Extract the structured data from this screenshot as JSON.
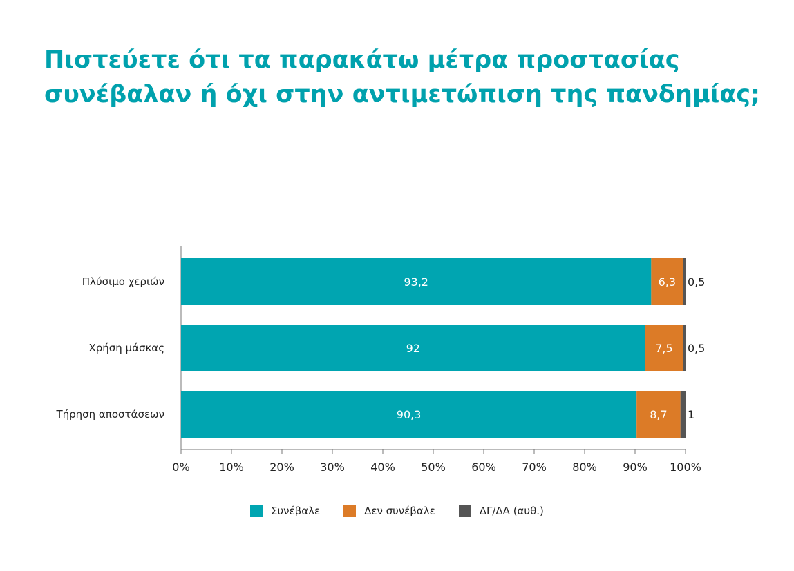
{
  "title_line1": "Πιστεύετε ότι τα παρακάτω μέτρα προστασίας",
  "title_line2": "συνέβαλαν ή όχι στην αντιμετώπιση της πανδημίας;",
  "chart_data": {
    "type": "bar",
    "orientation": "horizontal",
    "stacked": true,
    "categories": [
      "Πλύσιμο χεριών",
      "Χρήση μάσκας",
      "Τήρηση αποστάσεων"
    ],
    "series": [
      {
        "name": "Συνέβαλε",
        "values": [
          93.2,
          92,
          90.3
        ],
        "labels": [
          "93,2",
          "92",
          "90,3"
        ],
        "color": "#00a5b1"
      },
      {
        "name": "Δεν συνέβαλε",
        "values": [
          6.3,
          7.5,
          8.7
        ],
        "labels": [
          "6,3",
          "7,5",
          "8,7"
        ],
        "color": "#dc7b27"
      },
      {
        "name": "ΔΓ/ΔΑ (αυθ.)",
        "values": [
          0.5,
          0.5,
          1
        ],
        "labels": [
          "0,5",
          "0,5",
          "1"
        ],
        "color": "#555555"
      }
    ],
    "xlim": [
      0,
      100
    ],
    "xticks": [
      "0%",
      "10%",
      "20%",
      "30%",
      "40%",
      "50%",
      "60%",
      "70%",
      "80%",
      "90%",
      "100%"
    ],
    "xlabel": "",
    "ylabel": "",
    "grid": false,
    "legend_position": "bottom"
  }
}
